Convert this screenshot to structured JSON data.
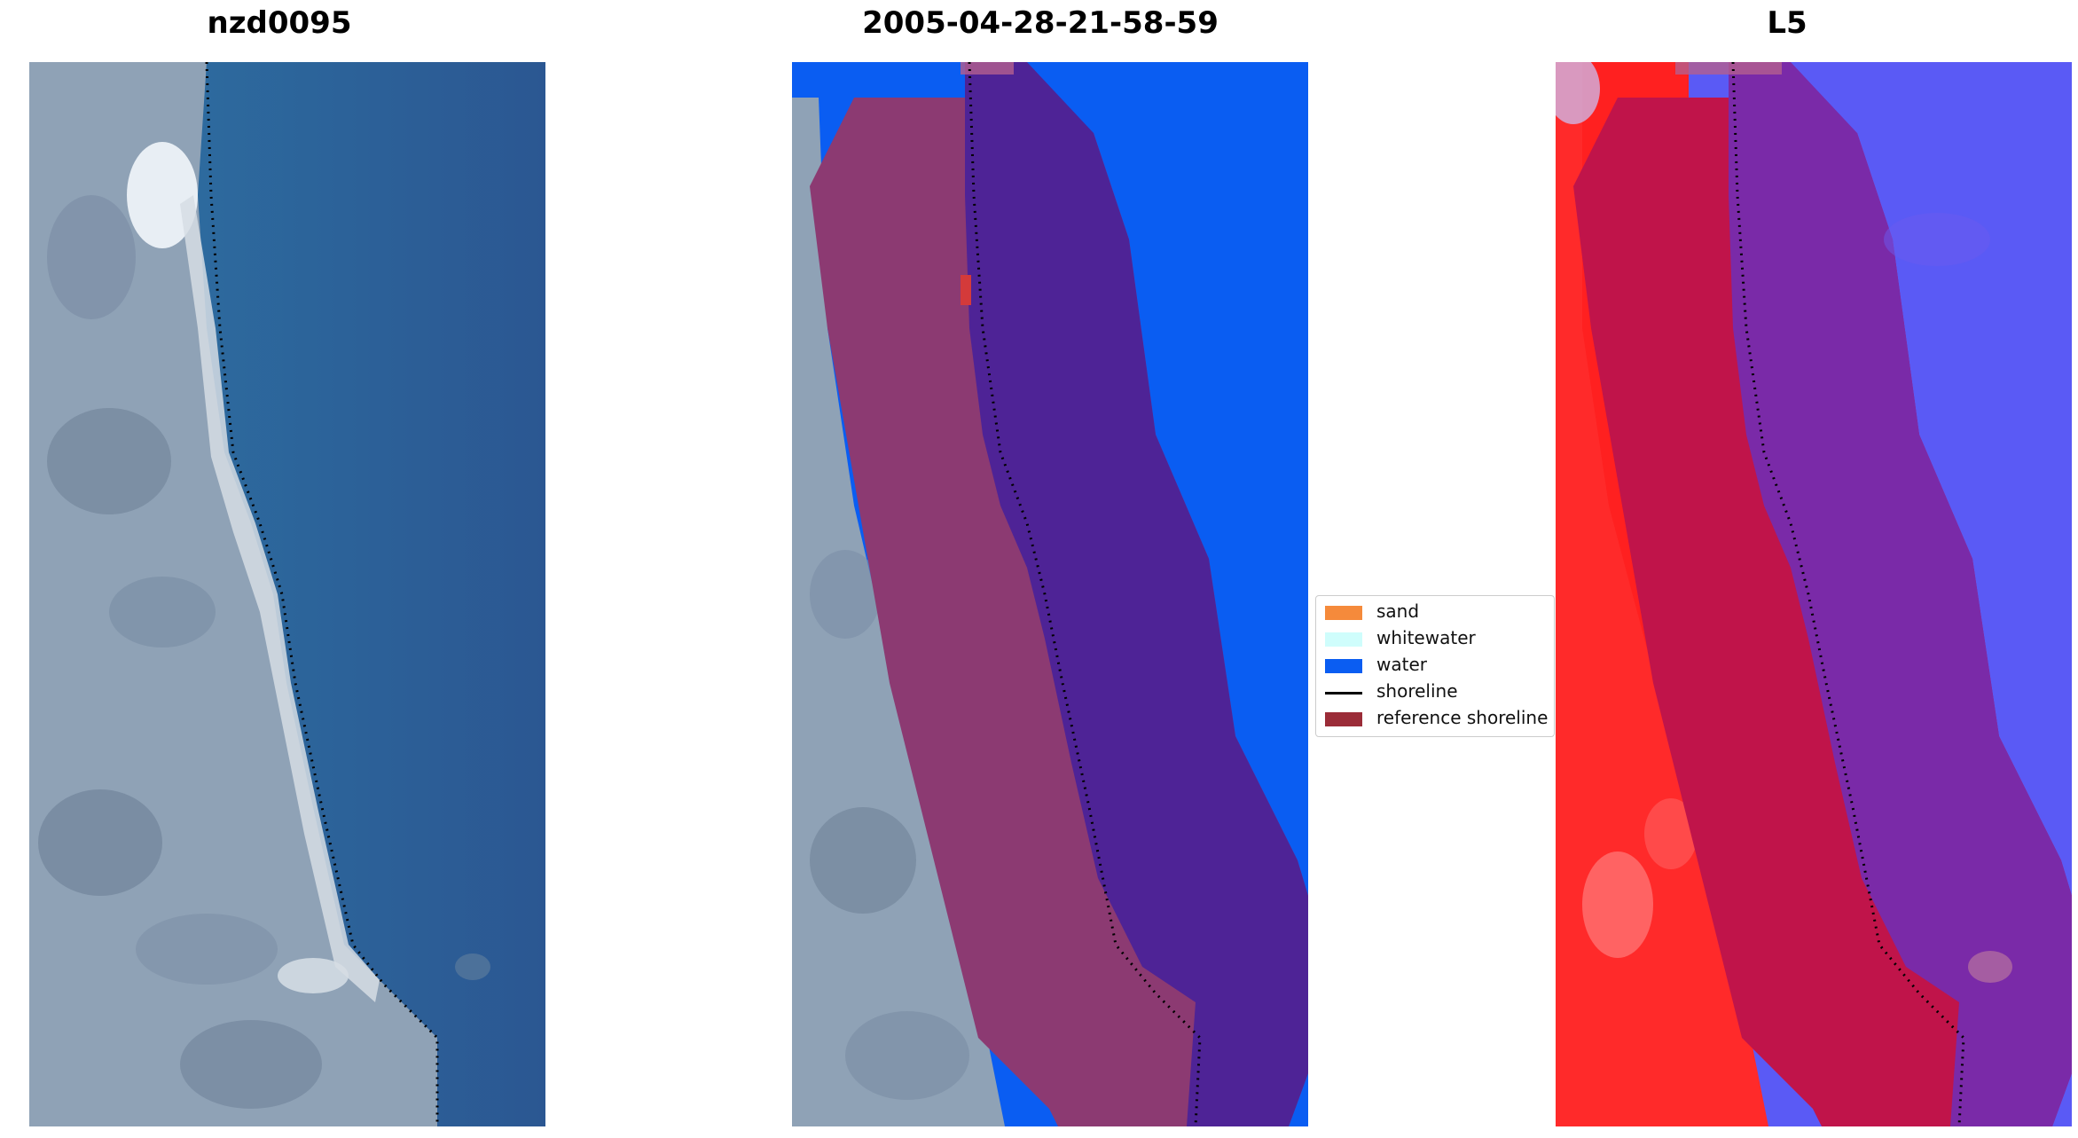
{
  "panels": [
    {
      "title": "nzd0095"
    },
    {
      "title": "2005-04-28-21-58-59"
    },
    {
      "title": "L5"
    }
  ],
  "legend": [
    {
      "label": "sand",
      "color": "#f58a3b",
      "kind": "patch"
    },
    {
      "label": "whitewater",
      "color": "#cffdfc",
      "kind": "patch"
    },
    {
      "label": "water",
      "color": "#0a5df2",
      "kind": "patch"
    },
    {
      "label": "shoreline",
      "color": "#000000",
      "kind": "line"
    },
    {
      "label": "reference shoreline",
      "color": "#9b2c38",
      "kind": "patch"
    }
  ],
  "colors": {
    "land": "#8c9fb2",
    "sea_rgb": "#2b5b94",
    "water_class": "#0a5df2",
    "buffer_land": "#8c3a72",
    "buffer_water": "#4e2396",
    "index_land": "#ff2020",
    "index_buffer_land": "#c0144a",
    "index_buffer_water": "#7a2aa8",
    "index_water": "#5a5af5"
  }
}
